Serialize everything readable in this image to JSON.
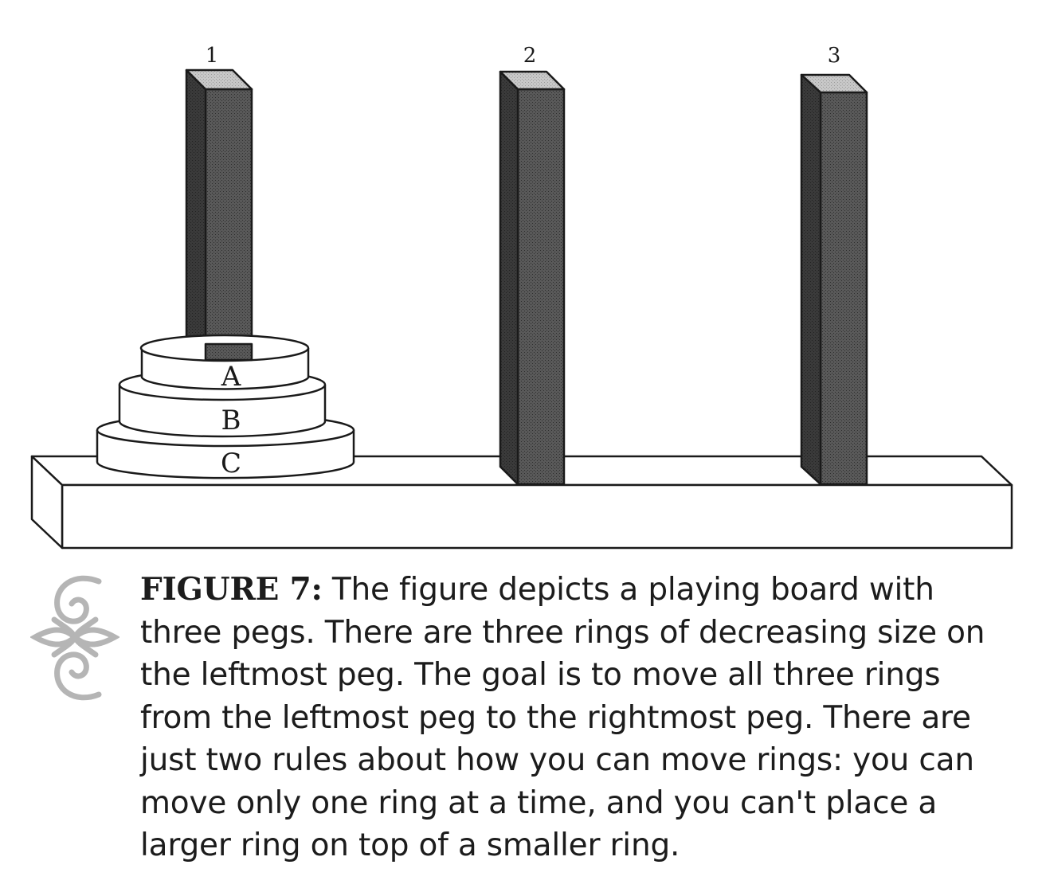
{
  "pegs": [
    {
      "label": "1"
    },
    {
      "label": "2"
    },
    {
      "label": "3"
    }
  ],
  "rings": [
    {
      "label": "A"
    },
    {
      "label": "B"
    },
    {
      "label": "C"
    }
  ],
  "caption": {
    "lead": "FIGURE 7:",
    "body": " The figure depicts a playing board with\nthree pegs. There are three rings of decreasing size on\nthe leftmost peg. The goal is to move all three rings\nfrom the leftmost peg to the rightmost peg. There are\njust two rules about how you can move rings: you can\nmove only one ring at a time, and you can't place a\nlarger ring on top of a smaller ring."
  },
  "ornament": {
    "icon": "scroll-ornament-icon",
    "color": "#b5b5b5"
  },
  "colors": {
    "peg": "#4a4a4a",
    "peg_top": "#bdbdbd",
    "line": "#1a1a1a"
  }
}
